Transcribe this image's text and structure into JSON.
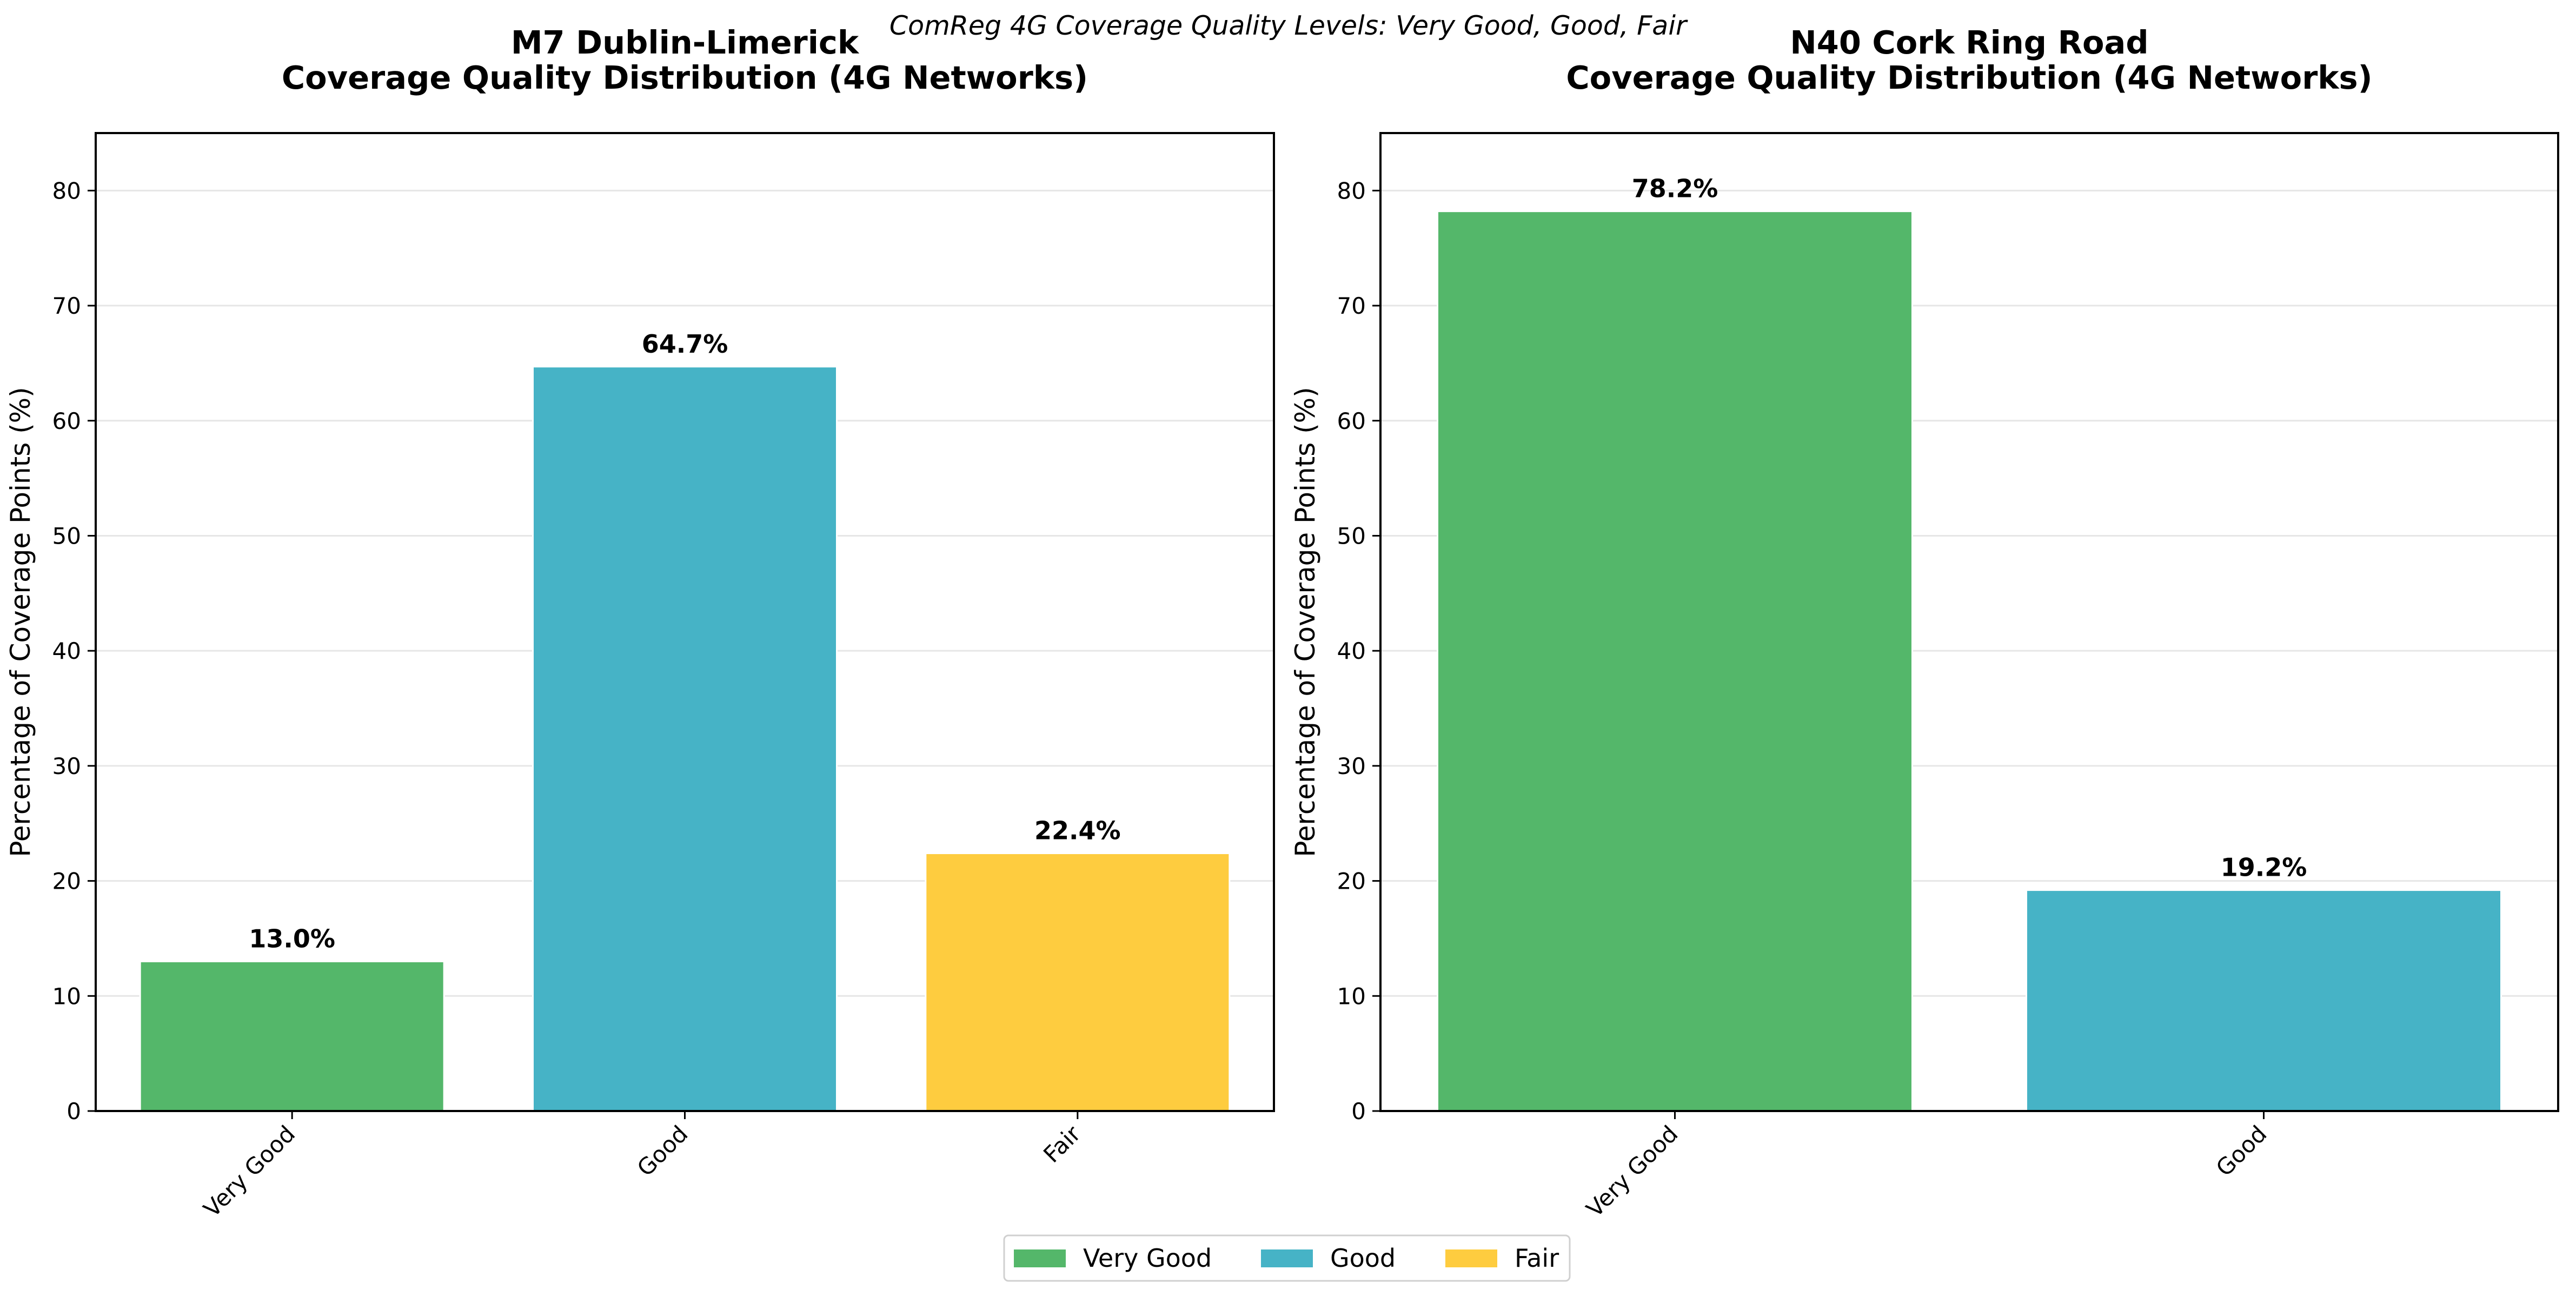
{
  "suptitle": "ComReg 4G Coverage Quality Levels: Very Good, Good, Fair",
  "legend": {
    "position": "bottom-center",
    "items": [
      {
        "label": "Very Good",
        "color": "#54b76a"
      },
      {
        "label": "Good",
        "color": "#46b3c6"
      },
      {
        "label": "Fair",
        "color": "#fecc3f"
      }
    ]
  },
  "chart_data": [
    {
      "type": "bar",
      "title_line1": "M7 Dublin-Limerick",
      "title_line2": "Coverage Quality Distribution (4G Networks)",
      "xlabel": "",
      "ylabel": "Percentage of Coverage Points (%)",
      "ylim": [
        0,
        85
      ],
      "yticks": [
        0,
        10,
        20,
        30,
        40,
        50,
        60,
        70,
        80
      ],
      "grid": "horizontal",
      "categories": [
        "Very Good",
        "Good",
        "Fair"
      ],
      "values": [
        13.0,
        64.7,
        22.4
      ],
      "value_labels": [
        "13.0%",
        "64.7%",
        "22.4%"
      ],
      "colors": [
        "#54b76a",
        "#46b3c6",
        "#fecc3f"
      ]
    },
    {
      "type": "bar",
      "title_line1": "N40 Cork Ring Road",
      "title_line2": "Coverage Quality Distribution (4G Networks)",
      "xlabel": "",
      "ylabel": "Percentage of Coverage Points (%)",
      "ylim": [
        0,
        85
      ],
      "yticks": [
        0,
        10,
        20,
        30,
        40,
        50,
        60,
        70,
        80
      ],
      "grid": "horizontal",
      "categories": [
        "Very Good",
        "Good"
      ],
      "values": [
        78.2,
        19.2
      ],
      "value_labels": [
        "78.2%",
        "19.2%"
      ],
      "colors": [
        "#54b76a",
        "#46b3c6"
      ]
    }
  ]
}
